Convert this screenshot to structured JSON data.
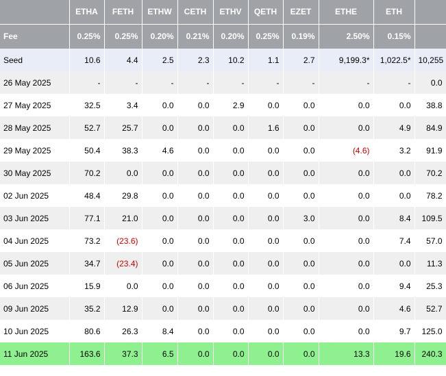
{
  "columns": [
    {
      "key": "label",
      "header": ""
    },
    {
      "key": "ETHA",
      "header": "ETHA"
    },
    {
      "key": "FETH",
      "header": "FETH"
    },
    {
      "key": "ETHW",
      "header": "ETHW"
    },
    {
      "key": "CETH",
      "header": "CETH"
    },
    {
      "key": "ETHV",
      "header": "ETHV"
    },
    {
      "key": "QETH",
      "header": "QETH"
    },
    {
      "key": "EZET",
      "header": "EZET"
    },
    {
      "key": "ETHE",
      "header": "ETHE"
    },
    {
      "key": "ETH",
      "header": "ETH"
    },
    {
      "key": "Total",
      "header": ""
    }
  ],
  "fee_row": {
    "label": "Fee",
    "values": [
      "0.25%",
      "0.25%",
      "0.20%",
      "0.21%",
      "0.20%",
      "0.25%",
      "0.19%",
      "2.50%",
      "0.15%",
      ""
    ]
  },
  "rows": [
    {
      "label": "Seed",
      "kind": "seed",
      "values": [
        "10.6",
        "4.4",
        "2.5",
        "2.3",
        "10.2",
        "1.1",
        "2.7",
        "9,199.3*",
        "1,022.5*",
        "10,255"
      ]
    },
    {
      "label": "26 May 2025",
      "kind": "day",
      "values": [
        "-",
        "-",
        "-",
        "-",
        "-",
        "-",
        "-",
        "-",
        "-",
        "0.0"
      ]
    },
    {
      "label": "27 May 2025",
      "kind": "day",
      "values": [
        "32.5",
        "3.4",
        "0.0",
        "0.0",
        "2.9",
        "0.0",
        "0.0",
        "0.0",
        "0.0",
        "38.8"
      ]
    },
    {
      "label": "28 May 2025",
      "kind": "day",
      "values": [
        "52.7",
        "25.7",
        "0.0",
        "0.0",
        "0.0",
        "1.6",
        "0.0",
        "0.0",
        "4.9",
        "84.9"
      ]
    },
    {
      "label": "29 May 2025",
      "kind": "day",
      "values": [
        "50.4",
        "38.3",
        "4.6",
        "0.0",
        "0.0",
        "0.0",
        "0.0",
        "(4.6)",
        "3.2",
        "91.9"
      ]
    },
    {
      "label": "30 May 2025",
      "kind": "day",
      "values": [
        "70.2",
        "0.0",
        "0.0",
        "0.0",
        "0.0",
        "0.0",
        "0.0",
        "0.0",
        "0.0",
        "70.2"
      ]
    },
    {
      "label": "02 Jun 2025",
      "kind": "day",
      "values": [
        "48.4",
        "29.8",
        "0.0",
        "0.0",
        "0.0",
        "0.0",
        "0.0",
        "0.0",
        "0.0",
        "78.2"
      ]
    },
    {
      "label": "03 Jun 2025",
      "kind": "day",
      "values": [
        "77.1",
        "21.0",
        "0.0",
        "0.0",
        "0.0",
        "0.0",
        "3.0",
        "0.0",
        "8.4",
        "109.5"
      ]
    },
    {
      "label": "04 Jun 2025",
      "kind": "day",
      "values": [
        "73.2",
        "(23.6)",
        "0.0",
        "0.0",
        "0.0",
        "0.0",
        "0.0",
        "0.0",
        "7.4",
        "57.0"
      ]
    },
    {
      "label": "05 Jun 2025",
      "kind": "day",
      "values": [
        "34.7",
        "(23.4)",
        "0.0",
        "0.0",
        "0.0",
        "0.0",
        "0.0",
        "0.0",
        "0.0",
        "11.3"
      ]
    },
    {
      "label": "06 Jun 2025",
      "kind": "day",
      "values": [
        "15.9",
        "0.0",
        "0.0",
        "0.0",
        "0.0",
        "0.0",
        "0.0",
        "0.0",
        "9.4",
        "25.3"
      ]
    },
    {
      "label": "09 Jun 2025",
      "kind": "day",
      "values": [
        "35.2",
        "12.9",
        "0.0",
        "0.0",
        "0.0",
        "0.0",
        "0.0",
        "0.0",
        "4.6",
        "52.7"
      ]
    },
    {
      "label": "10 Jun 2025",
      "kind": "day",
      "values": [
        "80.6",
        "26.3",
        "8.4",
        "0.0",
        "0.0",
        "0.0",
        "0.0",
        "0.0",
        "9.7",
        "125.0"
      ]
    },
    {
      "label": "11 Jun 2025",
      "kind": "latest",
      "values": [
        "163.6",
        "37.3",
        "6.5",
        "0.0",
        "0.0",
        "0.0",
        "0.0",
        "13.3",
        "19.6",
        "240.3"
      ]
    }
  ],
  "colors": {
    "header_bg": "#9fa2a7",
    "seed_bg": "#e9edf7",
    "stripe_bg": "#efefef",
    "latest_bg": "#8ff08f",
    "negative_text": "#cc0000"
  }
}
